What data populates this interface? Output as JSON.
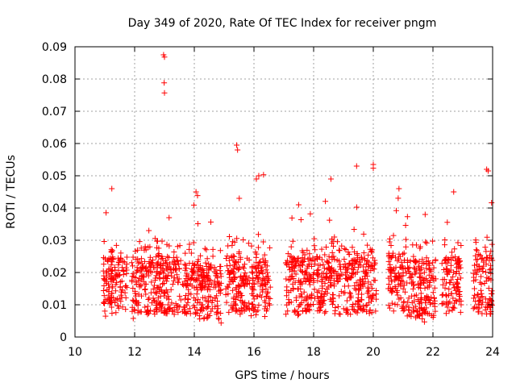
{
  "chart_data": {
    "type": "scatter",
    "title": "Day 349 of 2020, Rate Of TEC Index for receiver pngm",
    "xlabel": "GPS time / hours",
    "ylabel": "ROTI / TECUs",
    "xlim": [
      10,
      24
    ],
    "ylim": [
      0,
      0.09
    ],
    "x_ticks": [
      "10",
      "12",
      "14",
      "16",
      "18",
      "20",
      "22",
      "24"
    ],
    "y_ticks": [
      "0",
      "0.01",
      "0.02",
      "0.03",
      "0.04",
      "0.05",
      "0.06",
      "0.07",
      "0.08",
      "0.09"
    ],
    "grid": true,
    "marker": "+",
    "color": "#ff0000",
    "series": [
      {
        "name": "ROTI",
        "clusters": [
          {
            "x_start": 10.95,
            "x_end": 11.75,
            "y_min": 0.005,
            "y_max": 0.046
          },
          {
            "x_start": 11.9,
            "x_end": 12.85,
            "y_min": 0.005,
            "y_max": 0.033
          },
          {
            "x_start": 12.85,
            "x_end": 13.55,
            "y_min": 0.005,
            "y_max": 0.037
          },
          {
            "x_start": 13.6,
            "x_end": 14.9,
            "y_min": 0.003,
            "y_max": 0.045
          },
          {
            "x_start": 15.05,
            "x_end": 15.85,
            "y_min": 0.005,
            "y_max": 0.043
          },
          {
            "x_start": 15.9,
            "x_end": 16.55,
            "y_min": 0.004,
            "y_max": 0.05
          },
          {
            "x_start": 17.05,
            "x_end": 18.05,
            "y_min": 0.005,
            "y_max": 0.041
          },
          {
            "x_start": 18.1,
            "x_end": 18.95,
            "y_min": 0.005,
            "y_max": 0.049
          },
          {
            "x_start": 19.0,
            "x_end": 20.1,
            "y_min": 0.005,
            "y_max": 0.053
          },
          {
            "x_start": 20.5,
            "x_end": 21.1,
            "y_min": 0.006,
            "y_max": 0.046
          },
          {
            "x_start": 21.1,
            "x_end": 22.1,
            "y_min": 0.004,
            "y_max": 0.038
          },
          {
            "x_start": 22.3,
            "x_end": 22.95,
            "y_min": 0.005,
            "y_max": 0.045
          },
          {
            "x_start": 23.35,
            "x_end": 24.0,
            "y_min": 0.005,
            "y_max": 0.052
          }
        ],
        "outliers": [
          {
            "x": 12.97,
            "y": 0.0875
          },
          {
            "x": 13.0,
            "y": 0.0868
          },
          {
            "x": 12.99,
            "y": 0.0788
          },
          {
            "x": 13.0,
            "y": 0.0757
          },
          {
            "x": 15.42,
            "y": 0.0595
          },
          {
            "x": 15.45,
            "y": 0.058
          },
          {
            "x": 16.08,
            "y": 0.049
          },
          {
            "x": 16.32,
            "y": 0.0503
          },
          {
            "x": 20.0,
            "y": 0.0535
          },
          {
            "x": 23.85,
            "y": 0.0515
          }
        ]
      }
    ]
  }
}
